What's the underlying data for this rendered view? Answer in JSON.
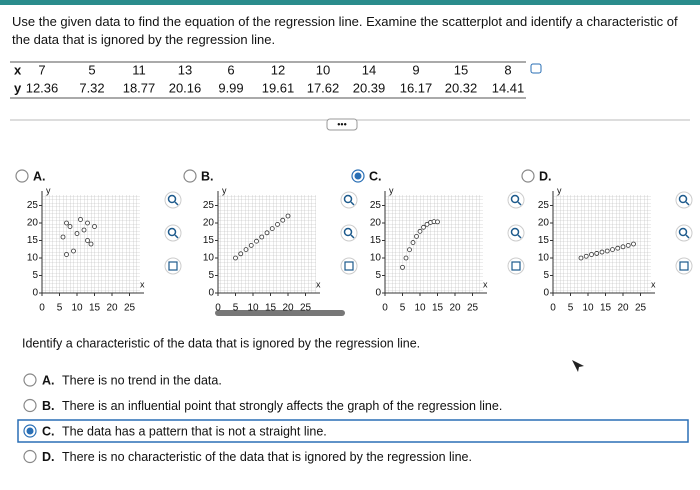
{
  "question": "Use the given data to find the equation of the regression line. Examine the scatterplot and identify a characteristic of the data that is ignored by the regression line.",
  "table": {
    "x_label": "x",
    "y_label": "y",
    "x": [
      7,
      5,
      11,
      13,
      6,
      12,
      10,
      14,
      9,
      15,
      8
    ],
    "y": [
      12.36,
      7.32,
      18.77,
      20.16,
      9.99,
      19.61,
      17.62,
      20.39,
      16.17,
      20.32,
      14.41
    ]
  },
  "plot_axis": {
    "ticks": [
      0,
      5,
      10,
      15,
      20,
      25
    ],
    "xlim": [
      0,
      28
    ],
    "ylim": [
      0,
      28
    ],
    "x_label": "x",
    "y_label": "y"
  },
  "options": [
    {
      "letter": "A.",
      "selected": false,
      "x": [
        6,
        7,
        8,
        9,
        10,
        11,
        12,
        13,
        14,
        15,
        7,
        13
      ],
      "y": [
        16,
        20,
        19,
        12,
        17,
        21,
        18,
        20,
        14,
        19,
        11,
        15
      ]
    },
    {
      "letter": "B.",
      "selected": false,
      "x": [
        5,
        6.5,
        8,
        9.5,
        11,
        12.5,
        14,
        15.5,
        17,
        18.5,
        20
      ],
      "y": [
        10,
        11.2,
        12.4,
        13.6,
        14.8,
        16,
        17.2,
        18.4,
        19.6,
        20.8,
        22
      ]
    },
    {
      "letter": "C.",
      "selected": true,
      "x": [
        7,
        5,
        11,
        13,
        6,
        12,
        10,
        14,
        9,
        15,
        8
      ],
      "y": [
        12.36,
        7.32,
        18.77,
        20.16,
        9.99,
        19.61,
        17.62,
        20.39,
        16.17,
        20.32,
        14.41
      ]
    },
    {
      "letter": "D.",
      "selected": false,
      "x": [
        8,
        9.5,
        11,
        12.5,
        14,
        15.5,
        17,
        18.5,
        20,
        21.5,
        23
      ],
      "y": [
        10,
        10.5,
        11,
        11.3,
        11.7,
        12,
        12.4,
        12.8,
        13.2,
        13.6,
        14
      ]
    }
  ],
  "question2": "Identify a characteristic of the data that is ignored by the regression line.",
  "answers": [
    {
      "letter": "A.",
      "text": "There is no trend in the data.",
      "selected": false
    },
    {
      "letter": "B.",
      "text": "There is an influential point that strongly affects the graph of the regression line.",
      "selected": false
    },
    {
      "letter": "C.",
      "text": "The data has a pattern that is not a straight line.",
      "selected": true
    },
    {
      "letter": "D.",
      "text": "There is no characteristic of the data that is ignored by the regression line.",
      "selected": false
    }
  ]
}
